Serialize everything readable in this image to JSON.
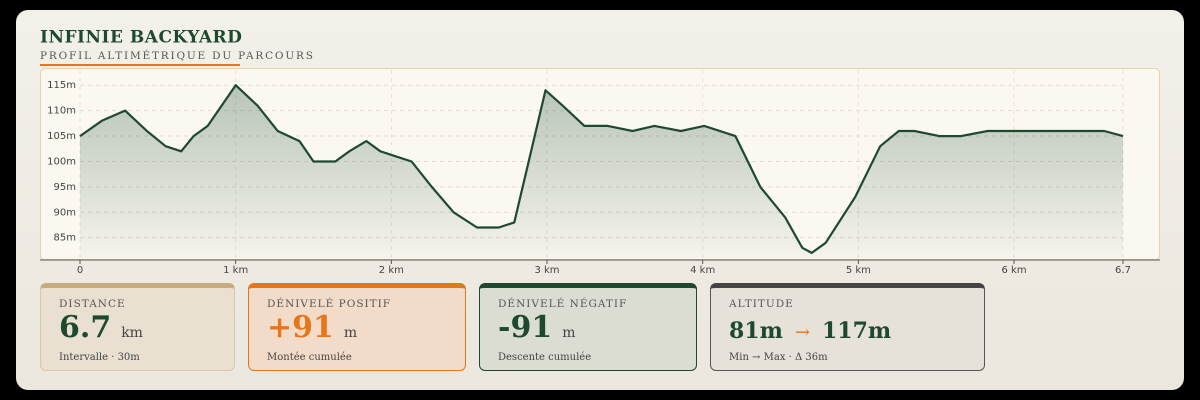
{
  "chart_data": {
    "type": "line",
    "title": "INFINIE BACKYARD",
    "subtitle": "PROFIL ALTIMÉTRIQUE DU PARCOURS",
    "x": [
      0,
      0.14,
      0.29,
      0.43,
      0.55,
      0.65,
      0.73,
      0.82,
      1.0,
      1.14,
      1.27,
      1.41,
      1.5,
      1.64,
      1.73,
      1.84,
      1.93,
      2.03,
      2.13,
      2.26,
      2.4,
      2.55,
      2.69,
      2.79,
      2.99,
      3.1,
      3.24,
      3.39,
      3.55,
      3.69,
      3.86,
      4.01,
      4.21,
      4.37,
      4.53,
      4.64,
      4.7,
      4.79,
      4.98,
      5.14,
      5.26,
      5.36,
      5.52,
      5.66,
      5.83,
      6.0,
      6.2,
      6.4,
      6.58,
      6.7
    ],
    "values": [
      105,
      108,
      110,
      106,
      103,
      102,
      105,
      107,
      115,
      111,
      106,
      104,
      100,
      100,
      102,
      104,
      102,
      101,
      100,
      95,
      90,
      87,
      87,
      88,
      114,
      111,
      107,
      107,
      106,
      107,
      106,
      107,
      105,
      95,
      89,
      83,
      82,
      84,
      93,
      103,
      106,
      106,
      105,
      105,
      106,
      106,
      106,
      106,
      106,
      105
    ],
    "color": "#1d4a2f",
    "xlim": [
      0,
      6.7
    ],
    "xticks": [
      0,
      {
        "value": 1,
        "label": "1 km"
      },
      {
        "value": 2,
        "label": "2 km"
      },
      {
        "value": 3,
        "label": "3 km"
      },
      {
        "value": 4,
        "label": "4 km"
      },
      {
        "value": 5,
        "label": "5 km"
      },
      {
        "value": 6,
        "label": "6 km"
      },
      6.7
    ],
    "ylim": [
      81,
      118
    ],
    "yticks": [
      {
        "value": 85,
        "label": "85m"
      },
      {
        "value": 90,
        "label": "90m"
      },
      {
        "value": 95,
        "label": "95m"
      },
      {
        "value": 100,
        "label": "100m"
      },
      {
        "value": 105,
        "label": "105m"
      },
      {
        "value": 110,
        "label": "110m"
      },
      {
        "value": 115,
        "label": "115m"
      }
    ],
    "grid": true
  },
  "cards": [
    {
      "label": "DISTANCE",
      "value": "6.7",
      "unit": "km",
      "note": "Intervalle · 30m"
    },
    {
      "label": "DÉNIVELÉ POSITIF",
      "value": "+91",
      "unit": "m",
      "note": "Montée cumulée"
    },
    {
      "label": "DÉNIVELÉ NÉGATIF",
      "value": "-91",
      "unit": "m",
      "note": "Descente cumulée"
    },
    {
      "label": "ALTITUDE",
      "value": "81m",
      "arrow": "→",
      "value2": "117m",
      "note": "Min → Max · Δ 36m"
    }
  ]
}
